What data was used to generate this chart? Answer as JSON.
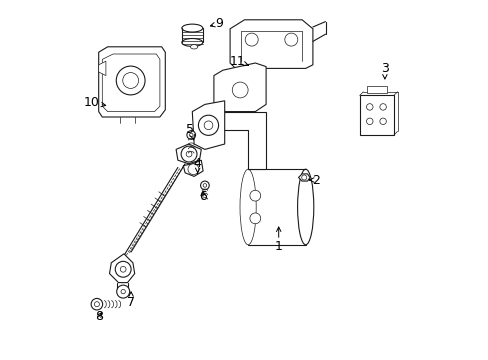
{
  "background_color": "#ffffff",
  "line_color": "#1a1a1a",
  "figsize": [
    4.89,
    3.6
  ],
  "dpi": 100,
  "labels": {
    "1": [
      0.595,
      0.685,
      0.595,
      0.62
    ],
    "2": [
      0.7,
      0.5,
      0.67,
      0.5
    ],
    "3": [
      0.89,
      0.19,
      0.89,
      0.23
    ],
    "4": [
      0.37,
      0.455,
      0.37,
      0.49
    ],
    "5": [
      0.35,
      0.36,
      0.36,
      0.39
    ],
    "6": [
      0.385,
      0.545,
      0.385,
      0.52
    ],
    "7": [
      0.185,
      0.84,
      0.185,
      0.8
    ],
    "8": [
      0.095,
      0.88,
      0.11,
      0.86
    ],
    "9": [
      0.43,
      0.065,
      0.395,
      0.075
    ],
    "10": [
      0.075,
      0.285,
      0.125,
      0.295
    ],
    "11": [
      0.48,
      0.17,
      0.52,
      0.185
    ]
  }
}
